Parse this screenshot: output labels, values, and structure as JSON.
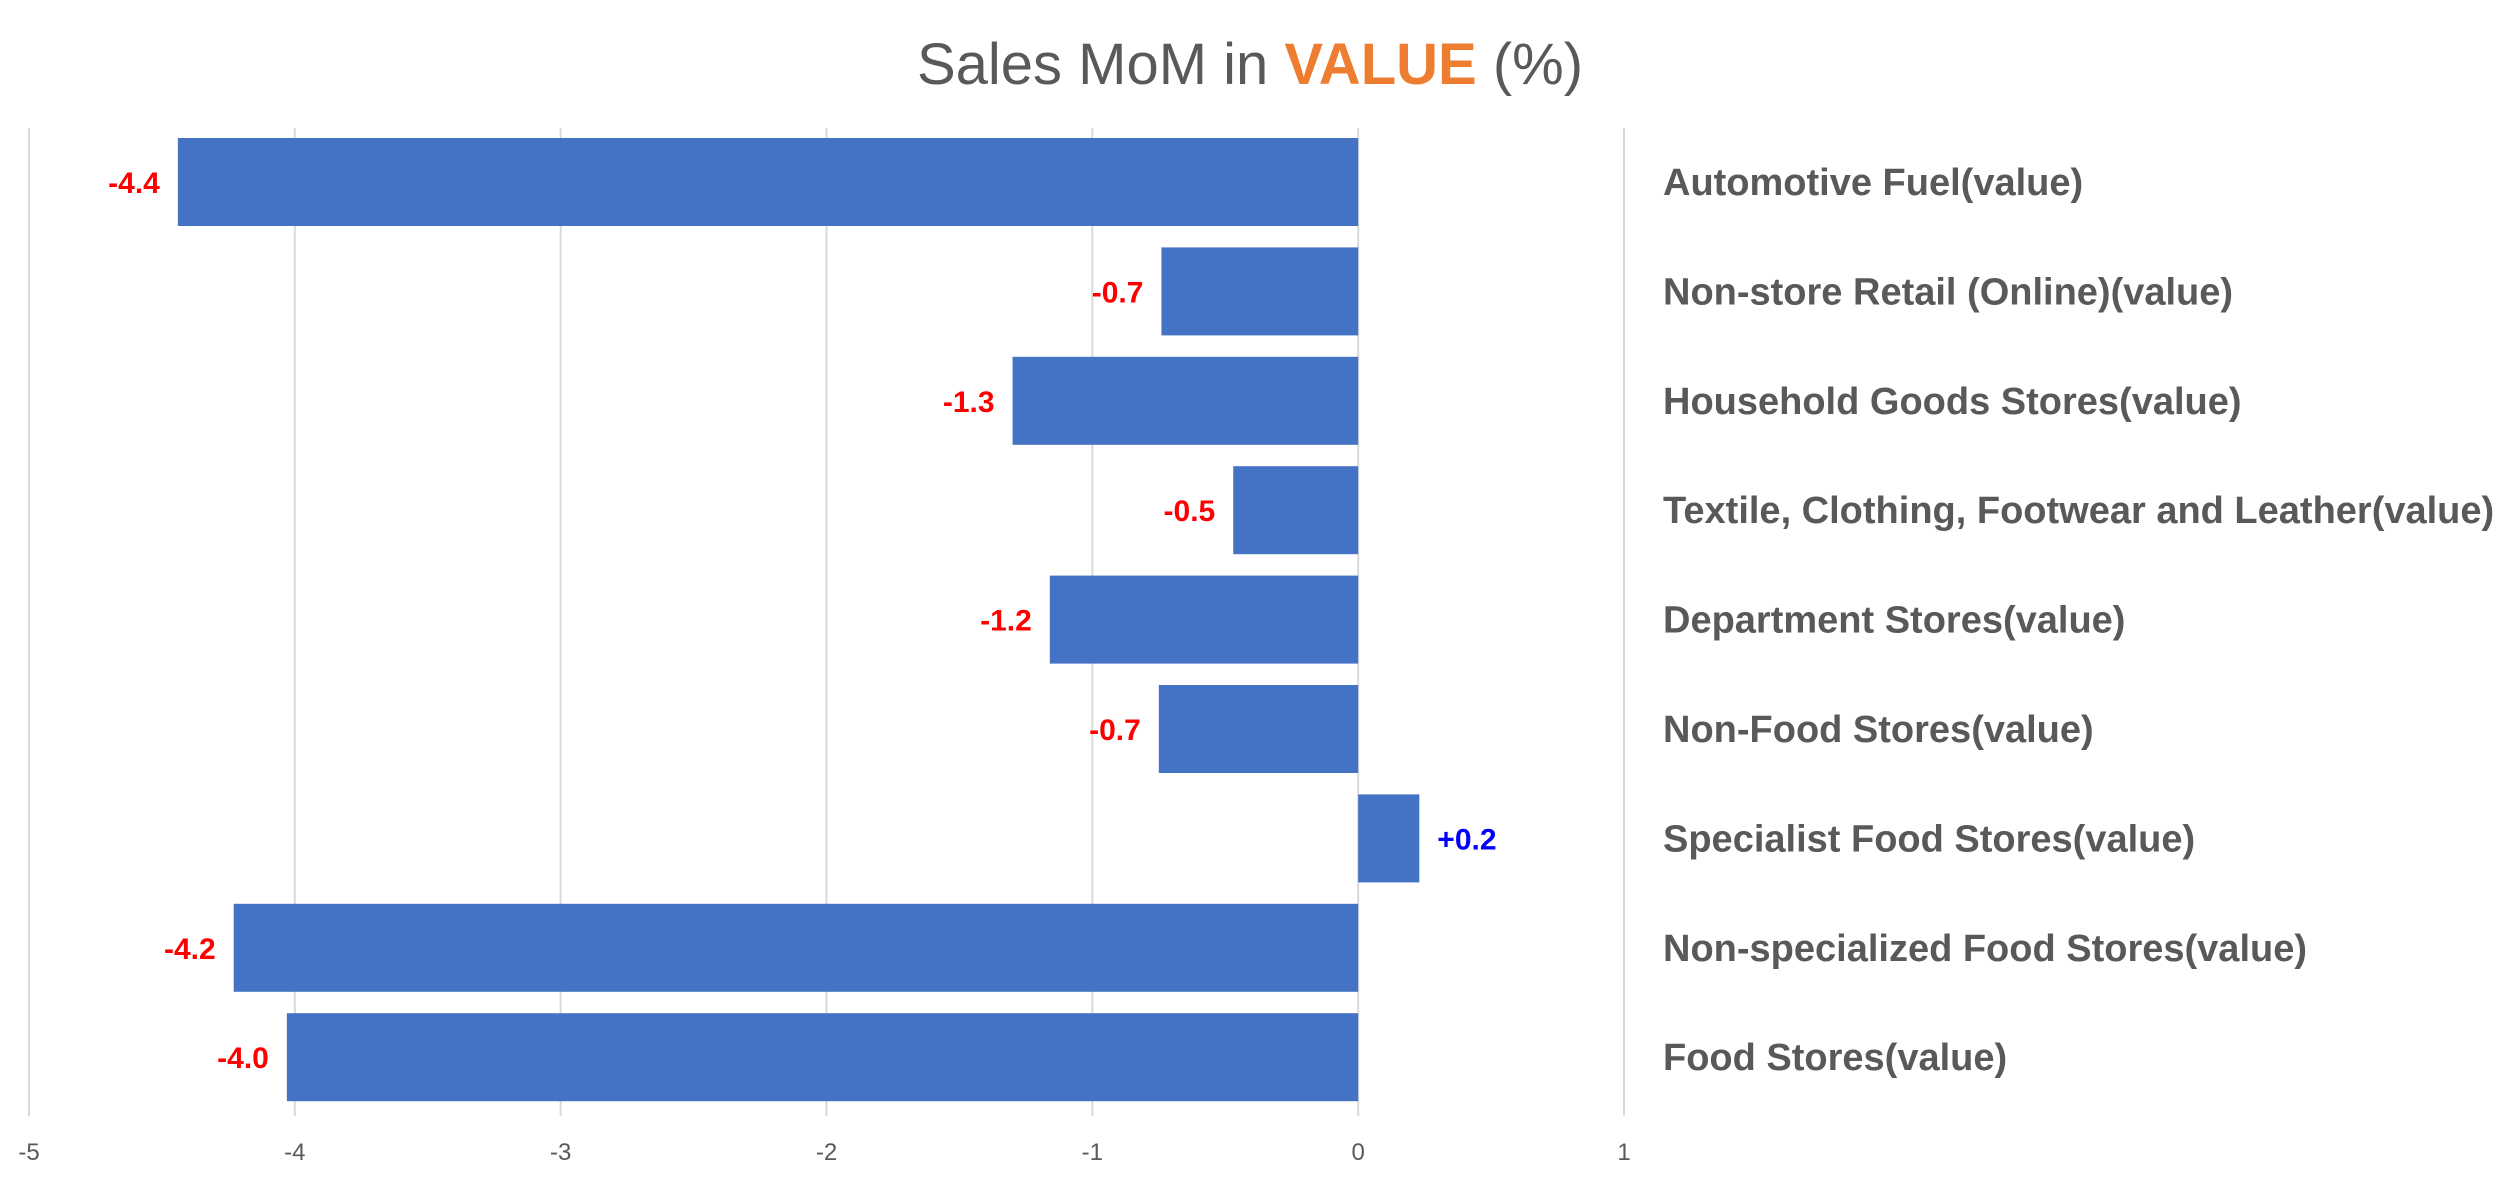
{
  "chart_data": {
    "type": "bar",
    "orientation": "horizontal",
    "title": {
      "prefix": "Sales MoM in ",
      "highlight": "VALUE",
      "suffix": " (%)"
    },
    "categories": [
      "Automotive Fuel(value)",
      "Non-store Retail (Online)(value)",
      "Household Goods Stores(value)",
      "Textile, Clothing, Footwear and Leather(value)",
      "Department Stores(value)",
      "Non-Food Stores(value)",
      "Specialist Food Stores(value)",
      "Non-specialized Food Stores(value)",
      "Food Stores(value)"
    ],
    "values": [
      -4.44,
      -0.74,
      -1.3,
      -0.47,
      -1.16,
      -0.75,
      0.23,
      -4.23,
      -4.03
    ],
    "data_labels": [
      "-4.4",
      "-0.7",
      "-1.3",
      "-0.5",
      "-1.2",
      "-0.7",
      "+0.2",
      "-4.2",
      "-4.0"
    ],
    "xlim": [
      -5,
      1
    ],
    "xticks": [
      "-5",
      "-4",
      "-3",
      "-2",
      "-1",
      "0",
      "1"
    ],
    "grid": true,
    "legend": "none",
    "colors": {
      "bar": "#4472C4",
      "title_highlight": "#ED7D31",
      "negative_label": "#FF0000",
      "positive_label": "#0000FF",
      "text": "#595959",
      "grid": "#D9D9D9"
    }
  }
}
